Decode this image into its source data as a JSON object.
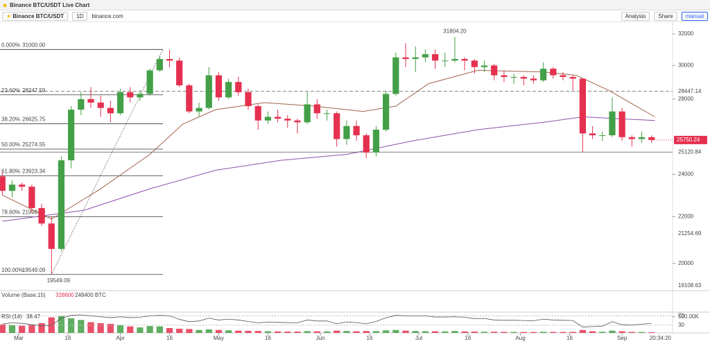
{
  "header": {
    "title": "Binance BTC/USDT Live Chart"
  },
  "toolbar": {
    "symbol": "Binance BTC/USDT",
    "interval": "1D",
    "source": "binance.com",
    "analysis": "Analysis",
    "share": "Share",
    "mode": "manual"
  },
  "chart_data": {
    "type": "candlestick",
    "log_scale": true,
    "colors": {
      "up": "#43a047",
      "down": "#e5304f"
    },
    "x": [
      -5,
      -2,
      1,
      4,
      7,
      10,
      13,
      16,
      19,
      22,
      25,
      28,
      31,
      34,
      37,
      40,
      43,
      46,
      49,
      52,
      55,
      58,
      61,
      64,
      67,
      70,
      73,
      76,
      79,
      82,
      85,
      88,
      91,
      94,
      97,
      100,
      103,
      106,
      109,
      112,
      115,
      118,
      121,
      124,
      127,
      130,
      133,
      136,
      139,
      142,
      145,
      148,
      151,
      154,
      157,
      160,
      163,
      166,
      169,
      172,
      175,
      178,
      181,
      184,
      187,
      190,
      193
    ],
    "open": [
      23900,
      23200,
      23500,
      23400,
      22400,
      21700,
      20600,
      24700,
      27400,
      28000,
      27800,
      27500,
      27200,
      28400,
      28100,
      28300,
      29700,
      30400,
      30300,
      28800,
      27300,
      27500,
      29400,
      28100,
      29000,
      28400,
      27600,
      26800,
      27000,
      26900,
      26800,
      26700,
      27700,
      27200,
      27200,
      25800,
      26500,
      26000,
      25100,
      26300,
      28300,
      30500,
      30400,
      30500,
      30700,
      30300,
      30300,
      30400,
      30300,
      29900,
      30000,
      29400,
      29300,
      29300,
      29200,
      29100,
      29800,
      29400,
      29300,
      29200,
      26100,
      26000,
      26000,
      27300,
      25900,
      25800,
      25900
    ],
    "high": [
      24100,
      23700,
      23600,
      23500,
      22600,
      22000,
      24900,
      27600,
      28400,
      28700,
      28200,
      27900,
      28600,
      28700,
      28500,
      29800,
      30600,
      31000,
      30500,
      28900,
      27800,
      29900,
      29600,
      29200,
      29300,
      28600,
      27700,
      27300,
      27400,
      27100,
      26900,
      28400,
      28000,
      27400,
      27300,
      26800,
      26800,
      26100,
      26500,
      28500,
      30800,
      31400,
      31200,
      31000,
      31000,
      30800,
      31804.2,
      30500,
      30400,
      30300,
      30100,
      29700,
      29500,
      29400,
      29400,
      30200,
      29900,
      29600,
      29400,
      29200,
      26500,
      26200,
      28100,
      27500,
      26000,
      26200,
      26000
    ],
    "low": [
      23000,
      22900,
      23200,
      22200,
      21600,
      19549.09,
      20500,
      24300,
      27100,
      27500,
      27000,
      26700,
      27100,
      27800,
      27900,
      28200,
      29600,
      29900,
      28700,
      27200,
      27000,
      27400,
      27900,
      28000,
      28200,
      27400,
      26300,
      26600,
      26700,
      26400,
      26100,
      26600,
      26900,
      26800,
      25400,
      25500,
      25700,
      24800,
      24900,
      26200,
      28200,
      29900,
      29600,
      30200,
      29800,
      29900,
      30200,
      29700,
      29500,
      29600,
      29100,
      29000,
      28900,
      28800,
      28900,
      29000,
      29200,
      29100,
      28500,
      25120.84,
      25800,
      25700,
      25900,
      25700,
      25400,
      25600,
      25600
    ],
    "close": [
      23200,
      23500,
      23400,
      22400,
      21700,
      20600,
      24700,
      27400,
      28000,
      27800,
      27500,
      27200,
      28400,
      28100,
      28300,
      29700,
      30400,
      30300,
      28800,
      27300,
      27500,
      29400,
      28100,
      29000,
      28400,
      27600,
      26800,
      27000,
      26900,
      26800,
      26700,
      27700,
      27200,
      27200,
      25800,
      26500,
      26000,
      25100,
      26300,
      28300,
      30500,
      30400,
      30500,
      30700,
      30300,
      30300,
      30400,
      30300,
      29900,
      30000,
      29400,
      29300,
      29300,
      29200,
      29100,
      29800,
      29400,
      29300,
      29200,
      26100,
      26000,
      26000,
      27300,
      25900,
      25800,
      25900,
      25750.24
    ],
    "ylim": [
      18940,
      32780
    ],
    "yticks": [
      20000,
      22000,
      24000,
      28000,
      30000,
      32000
    ],
    "xlim": [
      -5.7,
      199.4
    ],
    "xticks": [
      {
        "value": 0,
        "label": "Mar"
      },
      {
        "value": 15,
        "label": "16"
      },
      {
        "value": 31,
        "label": "Apr"
      },
      {
        "value": 46,
        "label": "16"
      },
      {
        "value": 61,
        "label": "May"
      },
      {
        "value": 76,
        "label": "16"
      },
      {
        "value": 92,
        "label": "Jun"
      },
      {
        "value": 107,
        "label": "16"
      },
      {
        "value": 122,
        "label": "Jul"
      },
      {
        "value": 137,
        "label": "16"
      },
      {
        "value": 153,
        "label": "Aug"
      },
      {
        "value": 168,
        "label": "16"
      },
      {
        "value": 184,
        "label": "Sep"
      }
    ],
    "time": "20:34:20",
    "moving_averages": [
      {
        "color": "#a0644b",
        "x": [
          -5,
          10,
          25,
          40,
          50,
          60,
          75,
          90,
          105,
          115,
          125,
          140,
          160,
          170,
          180,
          194
        ],
        "values": [
          23000,
          21900,
          23300,
          25000,
          26600,
          27400,
          27800,
          27600,
          27300,
          27600,
          28900,
          29700,
          29600,
          29400,
          28500,
          27000
        ]
      },
      {
        "color": "#8e4fa8",
        "x": [
          -5,
          20,
          40,
          60,
          80,
          100,
          120,
          140,
          160,
          172,
          194
        ],
        "values": [
          21800,
          22300,
          23300,
          24200,
          24700,
          25000,
          25700,
          26300,
          26700,
          27000,
          26800
        ]
      }
    ],
    "fibonacci": {
      "x": [
        10,
        44
      ],
      "levels": [
        {
          "ratio": "0.000%",
          "value": 31000,
          "label": "31000.00"
        },
        {
          "ratio": "23.60%",
          "value": 28247.59
        },
        {
          "ratio": "38.20%",
          "value": 26625.75
        },
        {
          "ratio": "50.00%",
          "value": 25274.55
        },
        {
          "ratio": "61.80%",
          "value": 23923.34
        },
        {
          "ratio": "78.60%",
          "value": 21999.59
        },
        {
          "ratio": "100.00%",
          "value": 19549.09
        }
      ]
    },
    "price_lines": [
      {
        "value": 28447.14,
        "style": "dashed"
      },
      {
        "value": 25120.84,
        "style": "solid"
      }
    ],
    "price_labels": [
      28447.14,
      25120.84,
      21254.69,
      19108.63
    ],
    "high_annotation": {
      "x": 133,
      "value": 31804.2,
      "label": "31804.20"
    },
    "low_annotation": {
      "x": 10,
      "value": 19549.09
    },
    "last_price": 25750.24,
    "volume": {
      "title": "Volume (Base,15)",
      "legend": [
        "328600",
        "248400 BTC"
      ],
      "ylim": [
        0,
        600000
      ],
      "yticks": [
        {
          "value": 500000,
          "label": "500.00K"
        }
      ],
      "values": [
        260000,
        240000,
        220000,
        250000,
        300000,
        480000,
        520000,
        450000,
        400000,
        330000,
        300000,
        280000,
        240000,
        200000,
        170000,
        210000,
        200000,
        150000,
        130000,
        120000,
        90000,
        110000,
        90000,
        80000,
        70000,
        65000,
        60000,
        50000,
        45000,
        40000,
        40000,
        55000,
        50000,
        45000,
        70000,
        60000,
        50000,
        60000,
        55000,
        80000,
        90000,
        70000,
        60000,
        50000,
        50000,
        45000,
        60000,
        45000,
        40000,
        35000,
        35000,
        30000,
        30000,
        28000,
        27000,
        35000,
        30000,
        28000,
        30000,
        90000,
        50000,
        35000,
        70000,
        50000,
        30000,
        28000,
        20000
      ]
    },
    "rsi": {
      "title": "RSI (14)",
      "last": 38.47,
      "ylim": [
        -3,
        83
      ],
      "yticks": [
        70,
        30
      ],
      "color": "#555555",
      "values": [
        35,
        40,
        38,
        32,
        28,
        30,
        60,
        72,
        74,
        70,
        66,
        62,
        66,
        62,
        64,
        70,
        72,
        70,
        55,
        45,
        48,
        60,
        52,
        56,
        52,
        46,
        40,
        43,
        42,
        41,
        40,
        52,
        48,
        48,
        36,
        44,
        41,
        36,
        46,
        62,
        72,
        70,
        70,
        70,
        65,
        65,
        66,
        64,
        58,
        59,
        52,
        51,
        51,
        50,
        49,
        56,
        52,
        51,
        50,
        22,
        24,
        26,
        45,
        32,
        31,
        34,
        38.47
      ]
    }
  }
}
